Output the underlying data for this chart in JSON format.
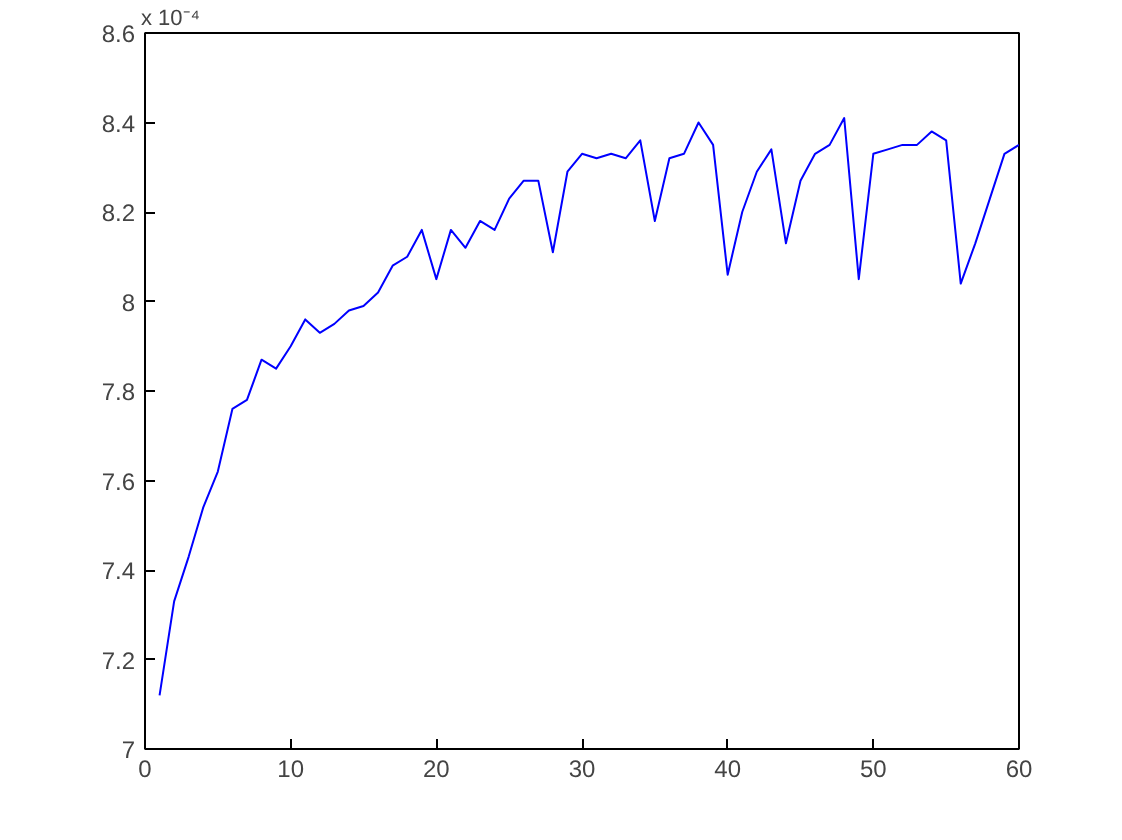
{
  "chart_data": {
    "type": "line",
    "annotations": [
      "x 10⁻⁴"
    ],
    "x": [
      1,
      2,
      3,
      4,
      5,
      6,
      7,
      8,
      9,
      10,
      11,
      12,
      13,
      14,
      15,
      16,
      17,
      18,
      19,
      20,
      21,
      22,
      23,
      24,
      25,
      26,
      27,
      28,
      29,
      30,
      31,
      32,
      33,
      34,
      35,
      36,
      37,
      38,
      39,
      40,
      41,
      42,
      43,
      44,
      45,
      46,
      47,
      48,
      49,
      50,
      51,
      52,
      53,
      54,
      55,
      56,
      57,
      58,
      59,
      60
    ],
    "series": [
      {
        "color": "#0000ff",
        "values": [
          7.12,
          7.33,
          7.43,
          7.54,
          7.62,
          7.76,
          7.78,
          7.87,
          7.85,
          7.9,
          7.96,
          7.93,
          7.95,
          7.98,
          7.99,
          8.02,
          8.08,
          8.1,
          8.16,
          8.05,
          8.16,
          8.12,
          8.18,
          8.16,
          8.23,
          8.27,
          8.27,
          8.11,
          8.29,
          8.33,
          8.32,
          8.33,
          8.32,
          8.36,
          8.18,
          8.32,
          8.33,
          8.4,
          8.35,
          8.06,
          8.2,
          8.29,
          8.34,
          8.13,
          8.27,
          8.33,
          8.35,
          8.41,
          8.05,
          8.33,
          8.34,
          8.35,
          8.35,
          8.38,
          8.36,
          8.04,
          8.13,
          8.23,
          8.33,
          8.35
        ]
      }
    ],
    "xlim": [
      0,
      60
    ],
    "ylim": [
      7,
      8.6
    ],
    "xticks": [
      0,
      10,
      20,
      30,
      40,
      50,
      60
    ],
    "yticks": [
      7,
      7.2,
      7.4,
      7.6,
      7.8,
      8,
      8.2,
      8.4,
      8.6
    ],
    "grid": false,
    "line_style": "solid",
    "marker": "none"
  }
}
